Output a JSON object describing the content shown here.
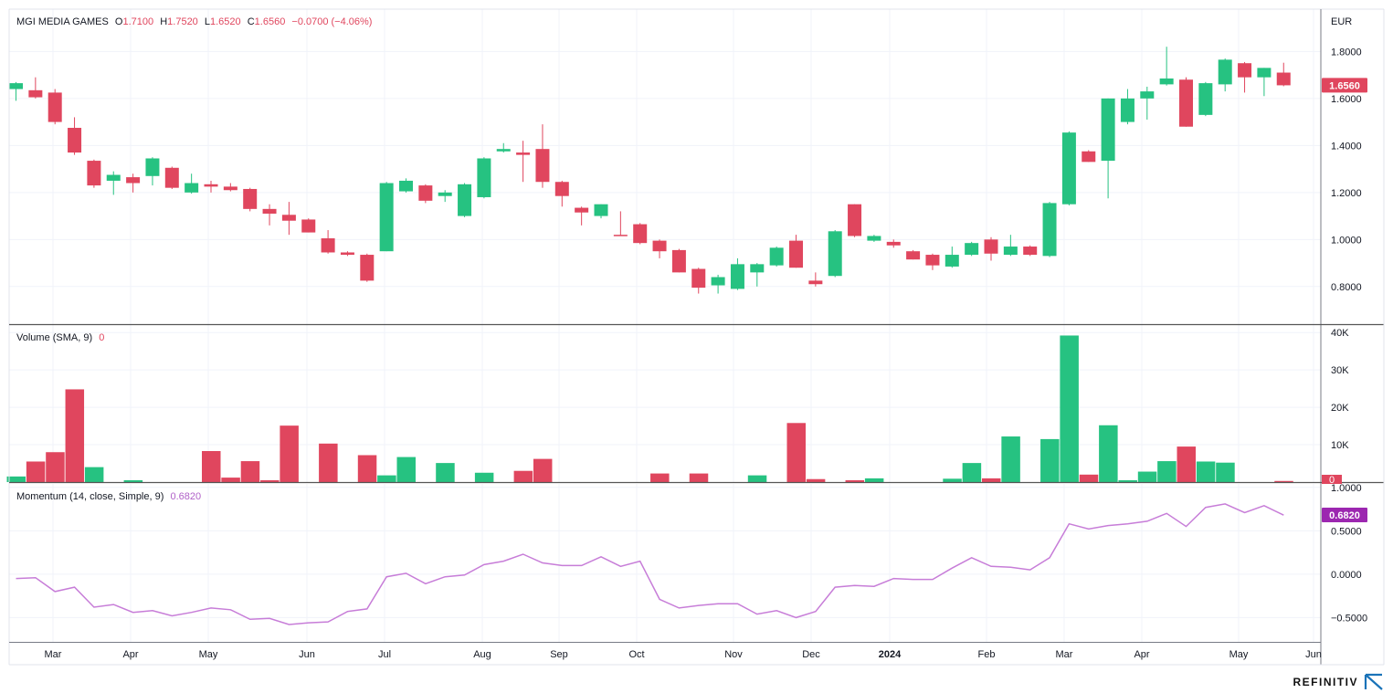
{
  "header": {
    "symbol": "MGI MEDIA GAMES",
    "o_label": "O",
    "o": "1.7100",
    "h_label": "H",
    "h": "1.7520",
    "l_label": "L",
    "l": "1.6520",
    "c_label": "C",
    "c": "1.6560",
    "change": "−0.0700 (−4.06%)"
  },
  "volume_legend": {
    "label": "Volume (SMA, 9)",
    "value": "0"
  },
  "momentum_legend": {
    "label": "Momentum (14, close, Simple, 9)",
    "value": "0.6820"
  },
  "currency": "EUR",
  "brand": "REFINITIV",
  "colors": {
    "up": "#26c281",
    "down": "#e0465e",
    "momentum": "#c77dd8",
    "last_price_bg": "#e0465e",
    "momentum_tag_bg": "#9c27b0"
  },
  "chart_data": [
    {
      "type": "candlestick",
      "title": "MGI MEDIA GAMES",
      "currency": "EUR",
      "x_tick_labels": [
        "Mar",
        "Apr",
        "May",
        "Jun",
        "Jul",
        "Aug",
        "Sep",
        "Oct",
        "Nov",
        "Dec",
        "2024",
        "Feb",
        "Mar",
        "Apr",
        "May",
        "Jun"
      ],
      "ylim": [
        0.64,
        1.98
      ],
      "y_ticks": [
        "0.8000",
        "1.0000",
        "1.2000",
        "1.4000",
        "1.6000",
        "1.8000"
      ],
      "last_price": "1.6560",
      "candles": [
        {
          "o": 1.64,
          "h": 1.67,
          "l": 1.59,
          "c": 1.665
        },
        {
          "o": 1.635,
          "h": 1.69,
          "l": 1.6,
          "c": 1.605
        },
        {
          "o": 1.625,
          "h": 1.64,
          "l": 1.49,
          "c": 1.5
        },
        {
          "o": 1.475,
          "h": 1.52,
          "l": 1.36,
          "c": 1.37
        },
        {
          "o": 1.335,
          "h": 1.34,
          "l": 1.22,
          "c": 1.23
        },
        {
          "o": 1.25,
          "h": 1.29,
          "l": 1.19,
          "c": 1.275
        },
        {
          "o": 1.265,
          "h": 1.28,
          "l": 1.2,
          "c": 1.24
        },
        {
          "o": 1.27,
          "h": 1.35,
          "l": 1.23,
          "c": 1.345
        },
        {
          "o": 1.305,
          "h": 1.31,
          "l": 1.215,
          "c": 1.22
        },
        {
          "o": 1.2,
          "h": 1.28,
          "l": 1.195,
          "c": 1.24
        },
        {
          "o": 1.235,
          "h": 1.25,
          "l": 1.2,
          "c": 1.225
        },
        {
          "o": 1.225,
          "h": 1.24,
          "l": 1.205,
          "c": 1.21
        },
        {
          "o": 1.215,
          "h": 1.22,
          "l": 1.12,
          "c": 1.13
        },
        {
          "o": 1.13,
          "h": 1.15,
          "l": 1.06,
          "c": 1.11
        },
        {
          "o": 1.105,
          "h": 1.16,
          "l": 1.02,
          "c": 1.08
        },
        {
          "o": 1.085,
          "h": 1.09,
          "l": 1.03,
          "c": 1.03
        },
        {
          "o": 1.005,
          "h": 1.04,
          "l": 0.94,
          "c": 0.945
        },
        {
          "o": 0.945,
          "h": 0.95,
          "l": 0.93,
          "c": 0.935
        },
        {
          "o": 0.935,
          "h": 0.94,
          "l": 0.82,
          "c": 0.825
        },
        {
          "o": 0.95,
          "h": 1.245,
          "l": 0.95,
          "c": 1.24
        },
        {
          "o": 1.205,
          "h": 1.26,
          "l": 1.2,
          "c": 1.25
        },
        {
          "o": 1.23,
          "h": 1.235,
          "l": 1.155,
          "c": 1.165
        },
        {
          "o": 1.185,
          "h": 1.21,
          "l": 1.16,
          "c": 1.2
        },
        {
          "o": 1.1,
          "h": 1.24,
          "l": 1.095,
          "c": 1.235
        },
        {
          "o": 1.18,
          "h": 1.35,
          "l": 1.175,
          "c": 1.345
        },
        {
          "o": 1.375,
          "h": 1.41,
          "l": 1.37,
          "c": 1.385
        },
        {
          "o": 1.37,
          "h": 1.42,
          "l": 1.245,
          "c": 1.36
        },
        {
          "o": 1.385,
          "h": 1.49,
          "l": 1.22,
          "c": 1.245
        },
        {
          "o": 1.245,
          "h": 1.25,
          "l": 1.14,
          "c": 1.185
        },
        {
          "o": 1.135,
          "h": 1.14,
          "l": 1.06,
          "c": 1.115
        },
        {
          "o": 1.1,
          "h": 1.15,
          "l": 1.09,
          "c": 1.15
        },
        {
          "o": 1.02,
          "h": 1.12,
          "l": 1.015,
          "c": 1.015
        },
        {
          "o": 1.065,
          "h": 1.07,
          "l": 0.98,
          "c": 0.985
        },
        {
          "o": 0.995,
          "h": 1.0,
          "l": 0.92,
          "c": 0.95
        },
        {
          "o": 0.955,
          "h": 0.96,
          "l": 0.86,
          "c": 0.86
        },
        {
          "o": 0.875,
          "h": 0.88,
          "l": 0.77,
          "c": 0.795
        },
        {
          "o": 0.805,
          "h": 0.85,
          "l": 0.77,
          "c": 0.84
        },
        {
          "o": 0.79,
          "h": 0.92,
          "l": 0.785,
          "c": 0.895
        },
        {
          "o": 0.86,
          "h": 0.9,
          "l": 0.8,
          "c": 0.895
        },
        {
          "o": 0.89,
          "h": 0.97,
          "l": 0.885,
          "c": 0.965
        },
        {
          "o": 0.995,
          "h": 1.02,
          "l": 0.88,
          "c": 0.88
        },
        {
          "o": 0.825,
          "h": 0.86,
          "l": 0.8,
          "c": 0.81
        },
        {
          "o": 0.845,
          "h": 1.04,
          "l": 0.84,
          "c": 1.035
        },
        {
          "o": 1.15,
          "h": 1.15,
          "l": 1.01,
          "c": 1.015
        },
        {
          "o": 0.995,
          "h": 1.02,
          "l": 0.99,
          "c": 1.015
        },
        {
          "o": 0.99,
          "h": 1.0,
          "l": 0.965,
          "c": 0.975
        },
        {
          "o": 0.95,
          "h": 0.955,
          "l": 0.915,
          "c": 0.915
        },
        {
          "o": 0.935,
          "h": 0.94,
          "l": 0.87,
          "c": 0.89
        },
        {
          "o": 0.885,
          "h": 0.97,
          "l": 0.88,
          "c": 0.935
        },
        {
          "o": 0.935,
          "h": 0.99,
          "l": 0.93,
          "c": 0.985
        },
        {
          "o": 1.0,
          "h": 1.01,
          "l": 0.91,
          "c": 0.94
        },
        {
          "o": 0.935,
          "h": 1.02,
          "l": 0.93,
          "c": 0.97
        },
        {
          "o": 0.97,
          "h": 0.975,
          "l": 0.93,
          "c": 0.935
        },
        {
          "o": 0.93,
          "h": 1.16,
          "l": 0.925,
          "c": 1.155
        },
        {
          "o": 1.15,
          "h": 1.46,
          "l": 1.145,
          "c": 1.455
        },
        {
          "o": 1.375,
          "h": 1.38,
          "l": 1.33,
          "c": 1.33
        },
        {
          "o": 1.335,
          "h": 1.6,
          "l": 1.175,
          "c": 1.6
        },
        {
          "o": 1.5,
          "h": 1.64,
          "l": 1.49,
          "c": 1.6
        },
        {
          "o": 1.6,
          "h": 1.65,
          "l": 1.51,
          "c": 1.63
        },
        {
          "o": 1.66,
          "h": 1.82,
          "l": 1.655,
          "c": 1.685
        },
        {
          "o": 1.68,
          "h": 1.69,
          "l": 1.48,
          "c": 1.48
        },
        {
          "o": 1.53,
          "h": 1.67,
          "l": 1.525,
          "c": 1.665
        },
        {
          "o": 1.66,
          "h": 1.77,
          "l": 1.63,
          "c": 1.765
        },
        {
          "o": 1.75,
          "h": 1.755,
          "l": 1.625,
          "c": 1.69
        },
        {
          "o": 1.69,
          "h": 1.73,
          "l": 1.61,
          "c": 1.73
        },
        {
          "o": 1.71,
          "h": 1.752,
          "l": 1.652,
          "c": 1.656
        }
      ]
    },
    {
      "type": "bar",
      "title": "Volume (SMA, 9)",
      "ylim": [
        0,
        42000
      ],
      "y_ticks": [
        "10K",
        "20K",
        "30K",
        "40K"
      ],
      "last_value": "0",
      "values": [
        1500,
        5500,
        8000,
        24800,
        4000,
        0,
        500,
        0,
        0,
        0,
        8300,
        1200,
        5600,
        500,
        15100,
        0,
        10300,
        0,
        7200,
        1800,
        6700,
        0,
        5100,
        0,
        2500,
        0,
        3000,
        6200,
        0,
        0,
        0,
        0,
        0,
        2300,
        0,
        2300,
        0,
        0,
        1800,
        0,
        15800,
        800,
        0,
        500,
        1000,
        0,
        0,
        0,
        900,
        5100,
        1000,
        12200,
        0,
        11500,
        39200,
        2000,
        15200,
        500,
        2800,
        5600,
        9500,
        5500,
        5200,
        0,
        0,
        300
      ],
      "directions": [
        "up",
        "down",
        "down",
        "down",
        "up",
        "down",
        "up",
        "down",
        "down",
        "up",
        "down",
        "down",
        "down",
        "down",
        "down",
        "down",
        "down",
        "down",
        "down",
        "up",
        "up",
        "down",
        "up",
        "up",
        "up",
        "up",
        "down",
        "down",
        "down",
        "down",
        "up",
        "down",
        "down",
        "down",
        "down",
        "down",
        "up",
        "up",
        "up",
        "up",
        "down",
        "down",
        "up",
        "down",
        "up",
        "down",
        "down",
        "down",
        "up",
        "up",
        "down",
        "up",
        "down",
        "up",
        "up",
        "down",
        "up",
        "up",
        "up",
        "up",
        "down",
        "up",
        "up",
        "down",
        "up",
        "down"
      ]
    },
    {
      "type": "line",
      "title": "Momentum (14, close, Simple, 9)",
      "ylim": [
        -0.78,
        1.04
      ],
      "y_ticks": [
        "−0.5000",
        "0.0000",
        "0.5000",
        "1.0000"
      ],
      "last_value": "0.6820",
      "values": [
        -0.05,
        -0.04,
        -0.2,
        -0.15,
        -0.38,
        -0.35,
        -0.44,
        -0.42,
        -0.48,
        -0.44,
        -0.39,
        -0.41,
        -0.52,
        -0.51,
        -0.58,
        -0.56,
        -0.55,
        -0.43,
        -0.4,
        -0.03,
        0.01,
        -0.11,
        -0.03,
        -0.01,
        0.11,
        0.15,
        0.23,
        0.13,
        0.1,
        0.1,
        0.2,
        0.09,
        0.15,
        -0.29,
        -0.39,
        -0.36,
        -0.34,
        -0.34,
        -0.46,
        -0.42,
        -0.5,
        -0.43,
        -0.15,
        -0.13,
        -0.14,
        -0.05,
        -0.06,
        -0.06,
        0.07,
        0.19,
        0.09,
        0.08,
        0.05,
        0.19,
        0.58,
        0.52,
        0.56,
        0.58,
        0.61,
        0.7,
        0.55,
        0.77,
        0.81,
        0.71,
        0.79,
        0.68
      ]
    }
  ]
}
